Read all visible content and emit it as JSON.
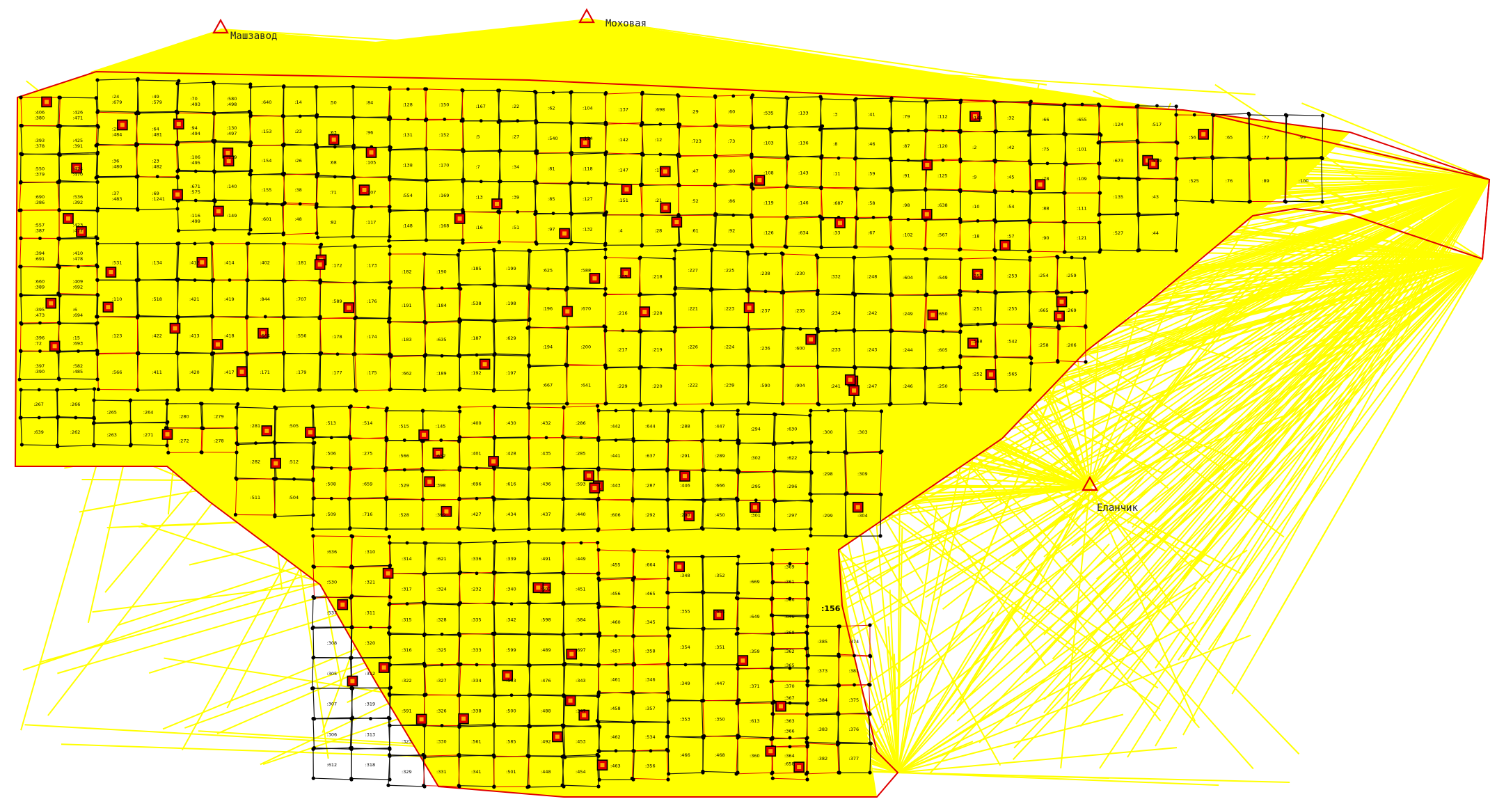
{
  "colors": {
    "background": "#ffffff",
    "survey_lines": "#ffff00",
    "boundary": "#e00000",
    "plot_lines": "#111111",
    "survey_station": "#e00000"
  },
  "stations": [
    {
      "label": "Машзавод",
      "icon": "triangle-station-icon"
    },
    {
      "label": "Моховая",
      "icon": "triangle-station-icon"
    },
    {
      "label": "Еланчик",
      "icon": "triangle-station-icon"
    }
  ],
  "highlighted_plot": ":156",
  "plots": [
    ":406",
    ":393",
    ":550",
    ":690",
    ":557",
    ":394",
    ":660",
    ":395",
    ":396",
    ":397",
    ":426",
    ":425",
    ":424",
    ":536",
    ":423",
    ":410",
    ":409",
    ":6",
    ":15",
    ":582",
    ":24",
    ":25",
    ":36",
    ":37",
    ":49",
    ":64",
    ":23",
    ":69",
    ":70",
    ":94",
    ":106",
    ":671",
    ":116",
    ":580",
    ":130",
    ":139",
    ":140",
    ":149",
    ":640",
    ":153",
    ":154",
    ":155",
    ":601",
    ":14",
    ":23",
    ":26",
    ":38",
    ":48",
    ":50",
    ":63",
    ":68",
    ":71",
    ":82",
    ":84",
    ":96",
    ":105",
    ":107",
    ":117",
    ":128",
    ":131",
    ":138",
    ":554",
    ":148",
    ":150",
    ":152",
    ":170",
    ":169",
    ":168",
    ":167",
    ":5",
    ":7",
    ":13",
    ":16",
    ":22",
    ":27",
    ":34",
    ":39",
    ":51",
    ":62",
    ":540",
    ":81",
    ":85",
    ":97",
    ":104",
    ":114",
    ":118",
    ":127",
    ":132",
    ":137",
    ":142",
    ":147",
    ":151",
    ":4",
    ":698",
    ":12",
    ":17",
    ":21",
    ":28",
    ":29",
    ":723",
    ":47",
    ":52",
    ":61",
    ":60",
    ":73",
    ":80",
    ":86",
    ":92",
    ":535",
    ":103",
    ":108",
    ":119",
    ":126",
    ":133",
    ":136",
    ":143",
    ":146",
    ":634",
    ":3",
    ":8",
    ":11",
    ":687",
    ":33",
    ":41",
    ":46",
    ":59",
    ":58",
    ":67",
    ":79",
    ":87",
    ":91",
    ":98",
    ":102",
    ":112",
    ":120",
    ":125",
    ":638",
    ":567",
    ":144",
    ":2",
    ":9",
    ":10",
    ":18",
    ":32",
    ":42",
    ":45",
    ":54",
    ":57",
    ":66",
    ":75",
    ":78",
    ":88",
    ":90",
    ":655",
    ":101",
    ":109",
    ":111",
    ":121",
    ":124",
    ":673",
    ":135",
    ":527",
    ":517",
    ":519",
    ":43",
    ":44",
    ":56",
    ":525",
    ":65",
    ":76",
    ":77",
    ":89",
    ":99",
    ":100",
    ":531",
    ":110",
    ":123",
    ":566",
    ":134",
    ":518",
    ":422",
    ":411",
    ":412",
    ":421",
    ":413",
    ":420",
    ":414",
    ":419",
    ":418",
    ":417",
    ":402",
    ":844",
    ":664",
    ":171",
    ":181",
    ":707",
    ":556",
    ":179",
    ":172",
    ":589",
    ":178",
    ":177",
    ":173",
    ":176",
    ":174",
    ":175",
    ":182",
    ":191",
    ":183",
    ":662",
    ":190",
    ":184",
    ":635",
    ":189",
    ":185",
    ":538",
    ":187",
    ":192",
    ":199",
    ":198",
    ":629",
    ":197",
    ":625",
    ":196",
    ":194",
    ":667",
    ":588",
    ":670",
    ":200",
    ":641",
    ":205",
    ":216",
    ":217",
    ":229",
    ":218",
    ":228",
    ":219",
    ":220",
    ":227",
    ":221",
    ":226",
    ":222",
    ":225",
    ":223",
    ":224",
    ":239",
    ":238",
    ":237",
    ":236",
    ":590",
    ":230",
    ":235",
    ":600",
    ":904",
    ":332",
    ":234",
    ":233",
    ":241",
    ":248",
    ":242",
    ":243",
    ":247",
    ":604",
    ":249",
    ":244",
    ":246",
    ":549",
    ":650",
    ":605",
    ":250",
    ":257",
    ":251",
    ":568",
    ":252",
    ":253",
    ":255",
    ":542",
    ":565",
    ":254",
    ":665",
    ":258",
    ":259",
    ":269",
    ":206",
    ":267",
    ":639",
    ":266",
    ":262",
    ":265",
    ":263",
    ":264",
    ":271",
    ":280",
    ":272",
    ":279",
    ":278",
    ":281",
    ":282",
    ":511",
    ":505",
    ":512",
    ":504",
    ":513",
    ":506",
    ":508",
    ":509",
    ":514",
    ":275",
    ":659",
    ":716",
    ":515",
    ":566",
    ":529",
    ":528",
    ":145",
    ":652",
    ":398",
    ":399",
    ":400",
    ":401",
    ":696",
    ":427",
    ":430",
    ":428",
    ":616",
    ":434",
    ":432",
    ":435",
    ":436",
    ":437",
    ":286",
    ":285",
    ":593",
    ":440",
    ":442",
    ":441",
    ":443",
    ":606",
    ":644",
    ":637",
    ":287",
    ":292",
    ":288",
    ":291",
    ":446",
    ":290",
    ":447",
    ":289",
    ":666",
    ":450",
    ":294",
    ":302",
    ":295",
    ":301",
    ":630",
    ":622",
    ":296",
    ":297",
    ":300",
    ":298",
    ":299",
    ":303",
    ":309",
    ":304",
    ":636",
    ":530",
    ":537",
    ":308",
    ":305",
    ":307",
    ":306",
    ":612",
    ":310",
    ":321",
    ":311",
    ":320",
    ":312",
    ":319",
    ":313",
    ":318",
    ":314",
    ":317",
    ":315",
    ":316",
    ":322",
    ":591",
    ":323",
    ":329",
    ":621",
    ":324",
    ":328",
    ":325",
    ":327",
    ":326",
    ":330",
    ":331",
    ":336",
    ":232",
    ":335",
    ":333",
    ":334",
    ":338",
    ":561",
    ":341",
    ":339",
    ":340",
    ":342",
    ":599",
    ":553",
    ":500",
    ":585",
    ":501",
    ":491",
    ":502",
    ":598",
    ":489",
    ":476",
    ":488",
    ":492",
    ":448",
    ":449",
    ":451",
    ":584",
    ":697",
    ":343",
    ":347",
    ":453",
    ":454",
    ":455",
    ":456",
    ":460",
    ":457",
    ":461",
    ":458",
    ":462",
    ":463",
    ":664",
    ":465",
    ":345",
    ":358",
    ":346",
    ":357",
    ":534",
    ":356",
    ":348",
    ":355",
    ":354",
    ":349",
    ":353",
    ":466",
    ":352",
    ":644",
    ":351",
    ":447",
    ":350",
    ":468",
    ":669",
    ":649",
    ":359",
    ":371",
    ":613",
    ":360",
    ":361",
    ":646",
    ":362",
    ":370",
    ":363",
    ":364",
    ":369",
    ":586",
    ":368",
    ":365",
    ":367",
    ":366",
    ":658",
    ":385",
    ":373",
    ":384",
    ":383",
    ":382",
    ":374",
    ":381",
    ":375",
    ":376",
    ":377",
    ":380",
    ":378",
    ":379",
    ":386",
    ":387",
    ":691",
    ":389",
    ":473",
    ":72",
    ":390",
    ":471",
    ":391",
    ":470",
    ":392",
    ":477",
    ":478",
    ":692",
    ":694",
    ":693",
    ":485",
    ":679",
    ":484",
    ":480",
    ":483",
    ":579",
    ":481",
    ":482",
    ":1241",
    ":493",
    ":494",
    ":495",
    ":575",
    ":499",
    ":498",
    ":497"
  ]
}
